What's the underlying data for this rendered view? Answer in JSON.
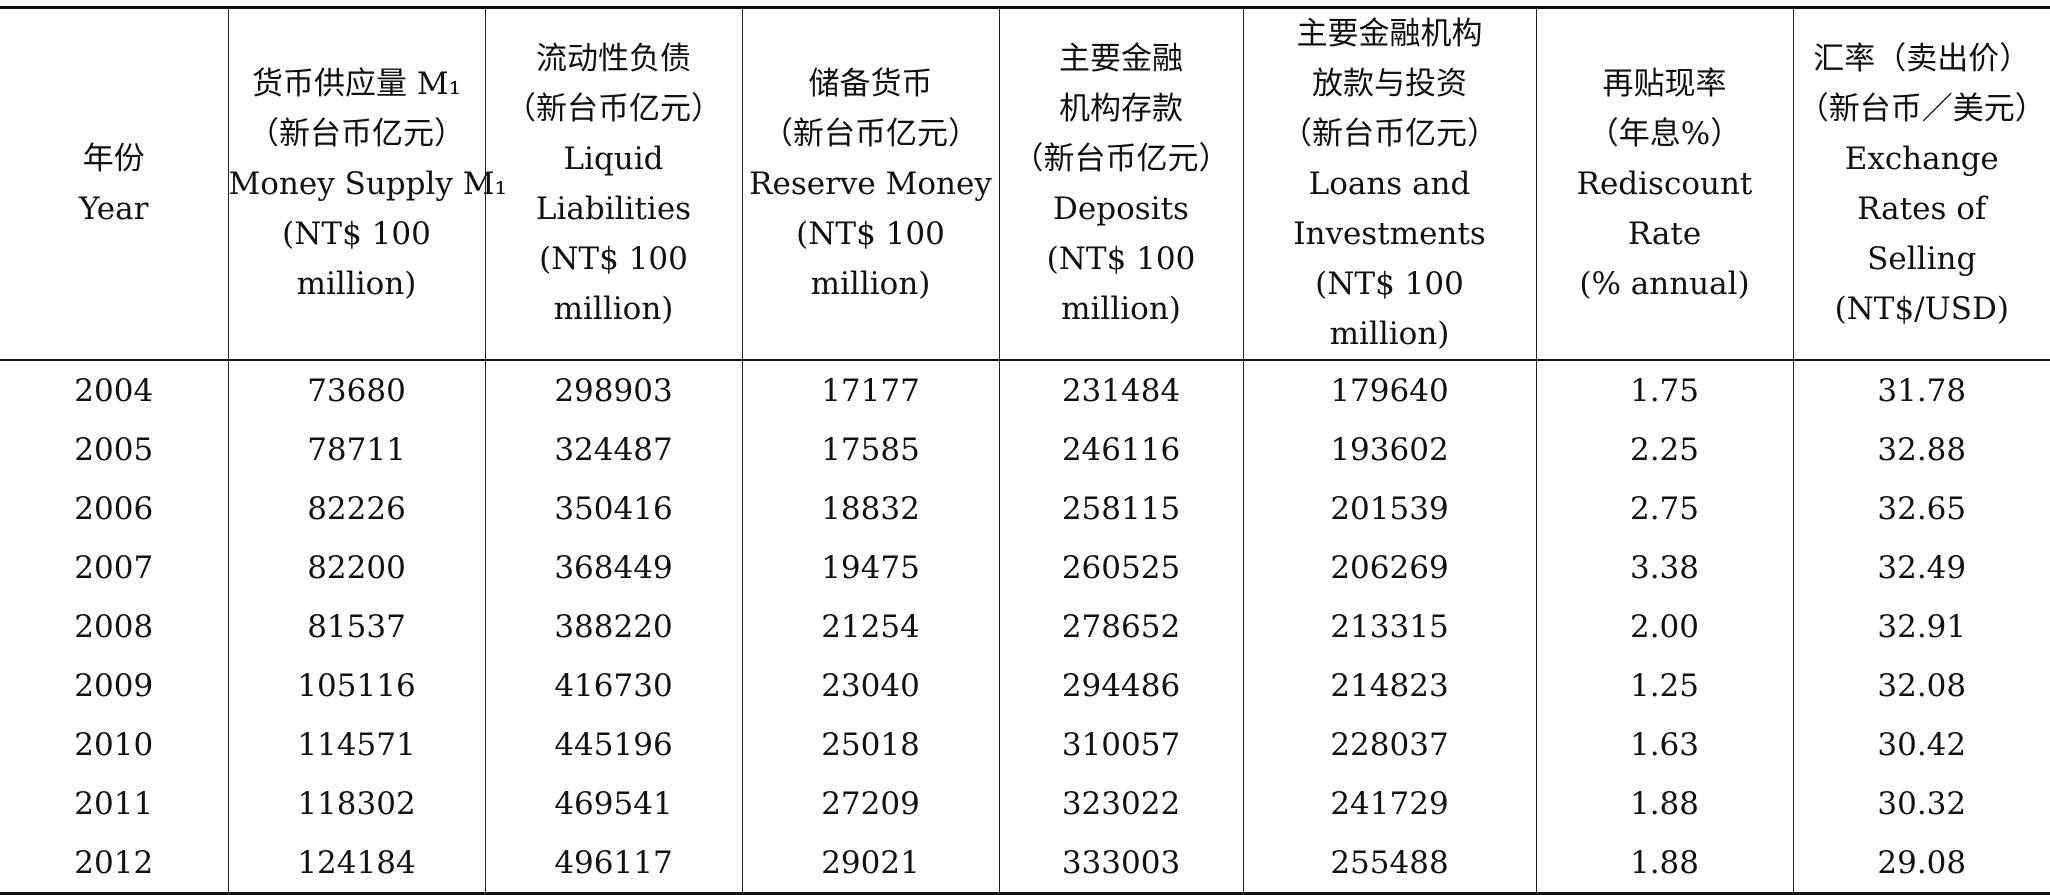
{
  "table": {
    "headers": [
      {
        "lines": [
          "年份",
          "Year"
        ]
      },
      {
        "lines": [
          "货币供应量 M₁",
          "（新台币亿元）",
          "Money Supply M₁",
          "(NT$ 100",
          "million)"
        ]
      },
      {
        "lines": [
          "流动性负债",
          "（新台币亿元）",
          "Liquid",
          "Liabilities",
          "(NT$ 100",
          "million)"
        ]
      },
      {
        "lines": [
          "储备货币",
          "（新台币亿元）",
          "Reserve Money",
          "(NT$ 100",
          "million)"
        ]
      },
      {
        "lines": [
          "主要金融",
          "机构存款",
          "（新台币亿元）",
          "Deposits",
          "(NT$ 100",
          "million)"
        ]
      },
      {
        "lines": [
          "主要金融机构",
          "放款与投资",
          "（新台币亿元）",
          "Loans and",
          "Investments",
          "(NT$ 100",
          "million)"
        ]
      },
      {
        "lines": [
          "再贴现率",
          "（年息%）",
          "Rediscount",
          "Rate",
          "(% annual)"
        ]
      },
      {
        "lines": [
          "汇率（卖出价）",
          "（新台币／美元）",
          "Exchange",
          "Rates of",
          "Selling",
          "(NT$/USD)"
        ]
      }
    ],
    "rows": [
      [
        "2004",
        "73680",
        "298903",
        "17177",
        "231484",
        "179640",
        "1.75",
        "31.78"
      ],
      [
        "2005",
        "78711",
        "324487",
        "17585",
        "246116",
        "193602",
        "2.25",
        "32.88"
      ],
      [
        "2006",
        "82226",
        "350416",
        "18832",
        "258115",
        "201539",
        "2.75",
        "32.65"
      ],
      [
        "2007",
        "82200",
        "368449",
        "19475",
        "260525",
        "206269",
        "3.38",
        "32.49"
      ],
      [
        "2008",
        "81537",
        "388220",
        "21254",
        "278652",
        "213315",
        "2.00",
        "32.91"
      ],
      [
        "2009",
        "105116",
        "416730",
        "23040",
        "294486",
        "214823",
        "1.25",
        "32.08"
      ],
      [
        "2010",
        "114571",
        "445196",
        "25018",
        "310057",
        "228037",
        "1.63",
        "30.42"
      ],
      [
        "2011",
        "118302",
        "469541",
        "27209",
        "323022",
        "241729",
        "1.88",
        "30.32"
      ],
      [
        "2012",
        "124184",
        "496117",
        "29021",
        "333003",
        "255488",
        "1.88",
        "29.08"
      ]
    ]
  }
}
